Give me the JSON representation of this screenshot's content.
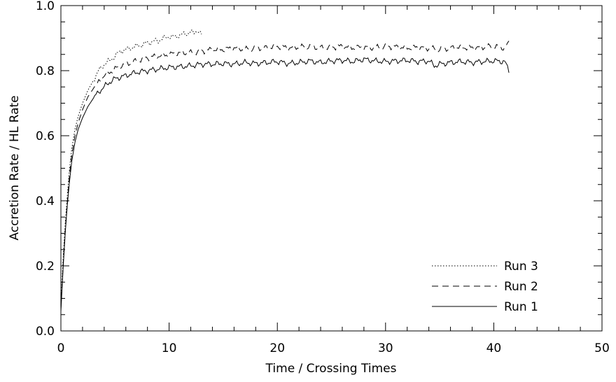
{
  "chart_data": {
    "type": "line",
    "title": "",
    "xlabel": "Time / Crossing Times",
    "ylabel": "Accretion Rate / HL Rate",
    "xlim": [
      0,
      50
    ],
    "ylim": [
      0.0,
      1.0
    ],
    "x_ticks": [
      "0",
      "10",
      "20",
      "30",
      "40",
      "50"
    ],
    "y_ticks": [
      "0.0",
      "0.2",
      "0.4",
      "0.6",
      "0.8",
      "1.0"
    ],
    "grid": false,
    "legend": "bottom-right",
    "series": [
      {
        "name": "Run 3",
        "style": "dotted",
        "points": [
          [
            0,
            0.08
          ],
          [
            0.2,
            0.22
          ],
          [
            0.4,
            0.33
          ],
          [
            0.6,
            0.42
          ],
          [
            0.8,
            0.5
          ],
          [
            1,
            0.56
          ],
          [
            1.3,
            0.62
          ],
          [
            1.6,
            0.66
          ],
          [
            2,
            0.7
          ],
          [
            2.5,
            0.74
          ],
          [
            3,
            0.77
          ],
          [
            3.5,
            0.8
          ],
          [
            4,
            0.82
          ],
          [
            4.5,
            0.83
          ],
          [
            5,
            0.845
          ],
          [
            5.5,
            0.86
          ],
          [
            6,
            0.865
          ],
          [
            6.5,
            0.87
          ],
          [
            7,
            0.875
          ],
          [
            7.5,
            0.88
          ],
          [
            8,
            0.885
          ],
          [
            8.5,
            0.89
          ],
          [
            9,
            0.892
          ],
          [
            9.5,
            0.9
          ],
          [
            10,
            0.905
          ],
          [
            10.5,
            0.903
          ],
          [
            11,
            0.91
          ],
          [
            11.5,
            0.912
          ],
          [
            12,
            0.92
          ],
          [
            12.3,
            0.915
          ],
          [
            12.6,
            0.925
          ],
          [
            13,
            0.91
          ]
        ]
      },
      {
        "name": "Run 2",
        "style": "dashed",
        "points": [
          [
            0,
            0.07
          ],
          [
            0.2,
            0.2
          ],
          [
            0.4,
            0.31
          ],
          [
            0.6,
            0.4
          ],
          [
            0.8,
            0.48
          ],
          [
            1,
            0.54
          ],
          [
            1.3,
            0.6
          ],
          [
            1.6,
            0.64
          ],
          [
            2,
            0.68
          ],
          [
            2.5,
            0.72
          ],
          [
            3,
            0.745
          ],
          [
            3.5,
            0.765
          ],
          [
            4,
            0.785
          ],
          [
            4.5,
            0.795
          ],
          [
            5,
            0.805
          ],
          [
            5.5,
            0.815
          ],
          [
            6,
            0.82
          ],
          [
            7,
            0.83
          ],
          [
            8,
            0.84
          ],
          [
            9,
            0.845
          ],
          [
            10,
            0.85
          ],
          [
            11,
            0.855
          ],
          [
            12,
            0.855
          ],
          [
            13,
            0.86
          ],
          [
            14,
            0.865
          ],
          [
            15,
            0.865
          ],
          [
            16,
            0.87
          ],
          [
            17,
            0.865
          ],
          [
            18,
            0.87
          ],
          [
            19,
            0.87
          ],
          [
            20,
            0.875
          ],
          [
            21,
            0.87
          ],
          [
            22,
            0.872
          ],
          [
            23,
            0.875
          ],
          [
            24,
            0.87
          ],
          [
            25,
            0.872
          ],
          [
            26,
            0.875
          ],
          [
            27,
            0.87
          ],
          [
            28,
            0.872
          ],
          [
            29,
            0.87
          ],
          [
            30,
            0.875
          ],
          [
            31,
            0.873
          ],
          [
            32,
            0.87
          ],
          [
            33,
            0.872
          ],
          [
            34,
            0.868
          ],
          [
            35,
            0.865
          ],
          [
            36,
            0.87
          ],
          [
            37,
            0.872
          ],
          [
            38,
            0.87
          ],
          [
            39,
            0.872
          ],
          [
            40,
            0.875
          ],
          [
            41,
            0.87
          ],
          [
            41.4,
            0.885
          ]
        ]
      },
      {
        "name": "Run 1",
        "style": "solid",
        "points": [
          [
            0,
            0.06
          ],
          [
            0.2,
            0.19
          ],
          [
            0.4,
            0.3
          ],
          [
            0.6,
            0.39
          ],
          [
            0.8,
            0.46
          ],
          [
            1,
            0.52
          ],
          [
            1.3,
            0.58
          ],
          [
            1.6,
            0.62
          ],
          [
            2,
            0.655
          ],
          [
            2.5,
            0.69
          ],
          [
            3,
            0.715
          ],
          [
            3.5,
            0.735
          ],
          [
            4,
            0.75
          ],
          [
            4.5,
            0.765
          ],
          [
            5,
            0.775
          ],
          [
            5.5,
            0.78
          ],
          [
            6,
            0.785
          ],
          [
            7,
            0.795
          ],
          [
            8,
            0.8
          ],
          [
            9,
            0.805
          ],
          [
            10,
            0.81
          ],
          [
            11,
            0.812
          ],
          [
            12,
            0.815
          ],
          [
            13,
            0.82
          ],
          [
            14,
            0.82
          ],
          [
            15,
            0.822
          ],
          [
            16,
            0.82
          ],
          [
            17,
            0.825
          ],
          [
            18,
            0.822
          ],
          [
            19,
            0.825
          ],
          [
            20,
            0.828
          ],
          [
            21,
            0.822
          ],
          [
            22,
            0.825
          ],
          [
            23,
            0.83
          ],
          [
            24,
            0.825
          ],
          [
            25,
            0.83
          ],
          [
            26,
            0.832
          ],
          [
            27,
            0.828
          ],
          [
            28,
            0.835
          ],
          [
            29,
            0.83
          ],
          [
            30,
            0.828
          ],
          [
            31,
            0.83
          ],
          [
            32,
            0.832
          ],
          [
            33,
            0.828
          ],
          [
            34,
            0.83
          ],
          [
            34.5,
            0.815
          ],
          [
            35,
            0.82
          ],
          [
            36,
            0.825
          ],
          [
            37,
            0.828
          ],
          [
            38,
            0.825
          ],
          [
            39,
            0.828
          ],
          [
            40,
            0.83
          ],
          [
            41,
            0.828
          ],
          [
            41.4,
            0.8
          ]
        ]
      }
    ]
  }
}
